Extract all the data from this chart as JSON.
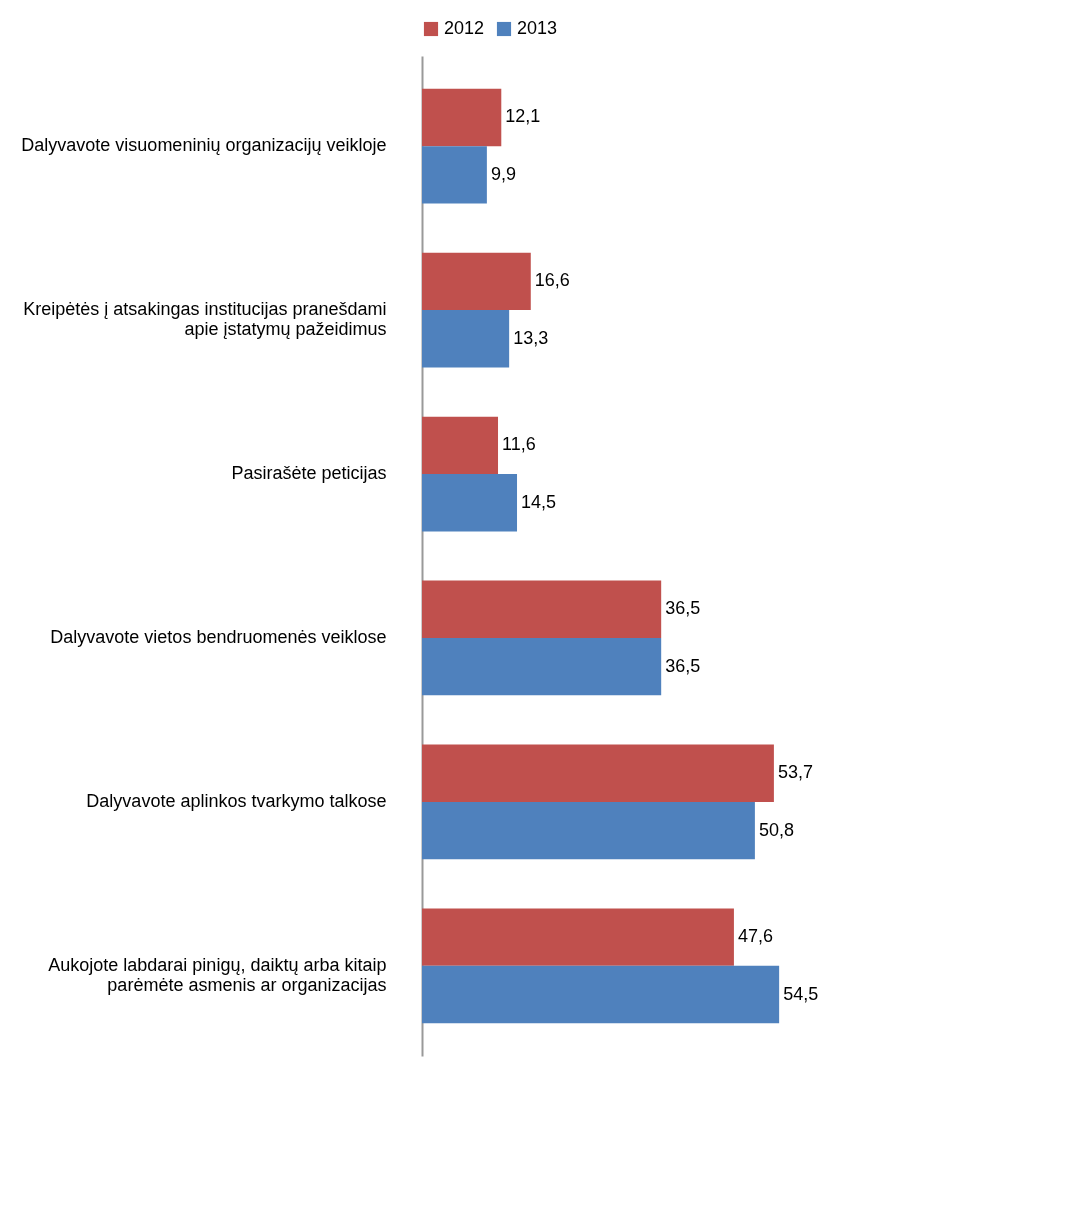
{
  "chart_data": {
    "type": "bar",
    "orientation": "horizontal",
    "legend": "top",
    "grid": false,
    "categories": [
      "Dalyvavote visuomeninių organizacijų veikloje",
      "Kreipėtės į atsakingas institucijas pranešdami\napie įstatymų pažeidimus",
      "Pasirašėte peticijas",
      "Dalyvavote vietos bendruomenės veiklose",
      "Dalyvavote aplinkos tvarkymo talkose",
      "Aukojote labdarai pinigų, daiktų arba kitaip\nparėmėte asmenis ar organizacijas"
    ],
    "series": [
      {
        "name": "2012",
        "color": "#c0504d",
        "values": [
          12.1,
          16.6,
          11.6,
          36.5,
          53.7,
          47.6
        ],
        "value_labels": [
          "12,1",
          "16,6",
          "11,6",
          "36,5",
          "53,7",
          "47,6"
        ]
      },
      {
        "name": "2013",
        "color": "#4f81bd",
        "values": [
          9.9,
          13.3,
          14.5,
          36.5,
          50.8,
          54.5
        ],
        "value_labels": [
          "9,9",
          "13,3",
          "14,5",
          "36,5",
          "50,8",
          "54,5"
        ]
      }
    ]
  }
}
